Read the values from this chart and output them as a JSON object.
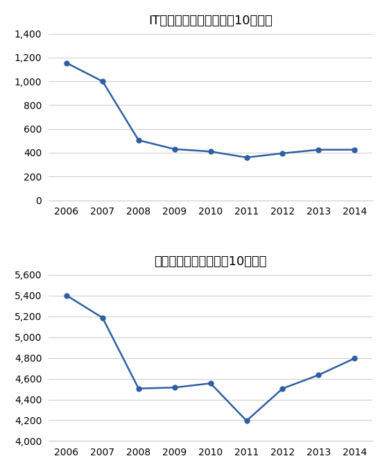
{
  "years": [
    2006,
    2007,
    2008,
    2009,
    2010,
    2011,
    2012,
    2013,
    2014
  ],
  "hardware": [
    1155,
    1000,
    505,
    430,
    410,
    360,
    395,
    425,
    425
  ],
  "software": [
    5400,
    5185,
    4505,
    4515,
    4555,
    4195,
    4505,
    4635,
    4795
  ],
  "title1": "ITハードウェアの投資（10億円）",
  "title2": "ソフトウェア資産額（10億円）",
  "line_color": "#2E5FA3",
  "marker": "o",
  "marker_size": 5,
  "line_width": 1.8,
  "hw_ylim": [
    0,
    1400
  ],
  "hw_yticks": [
    0,
    200,
    400,
    600,
    800,
    1000,
    1200,
    1400
  ],
  "sw_ylim": [
    4000,
    5600
  ],
  "sw_yticks": [
    4000,
    4200,
    4400,
    4600,
    4800,
    5000,
    5200,
    5400,
    5600
  ],
  "bg_color": "#ffffff",
  "grid_color": "#d0d0d0",
  "title_fontsize": 13,
  "tick_fontsize": 10
}
